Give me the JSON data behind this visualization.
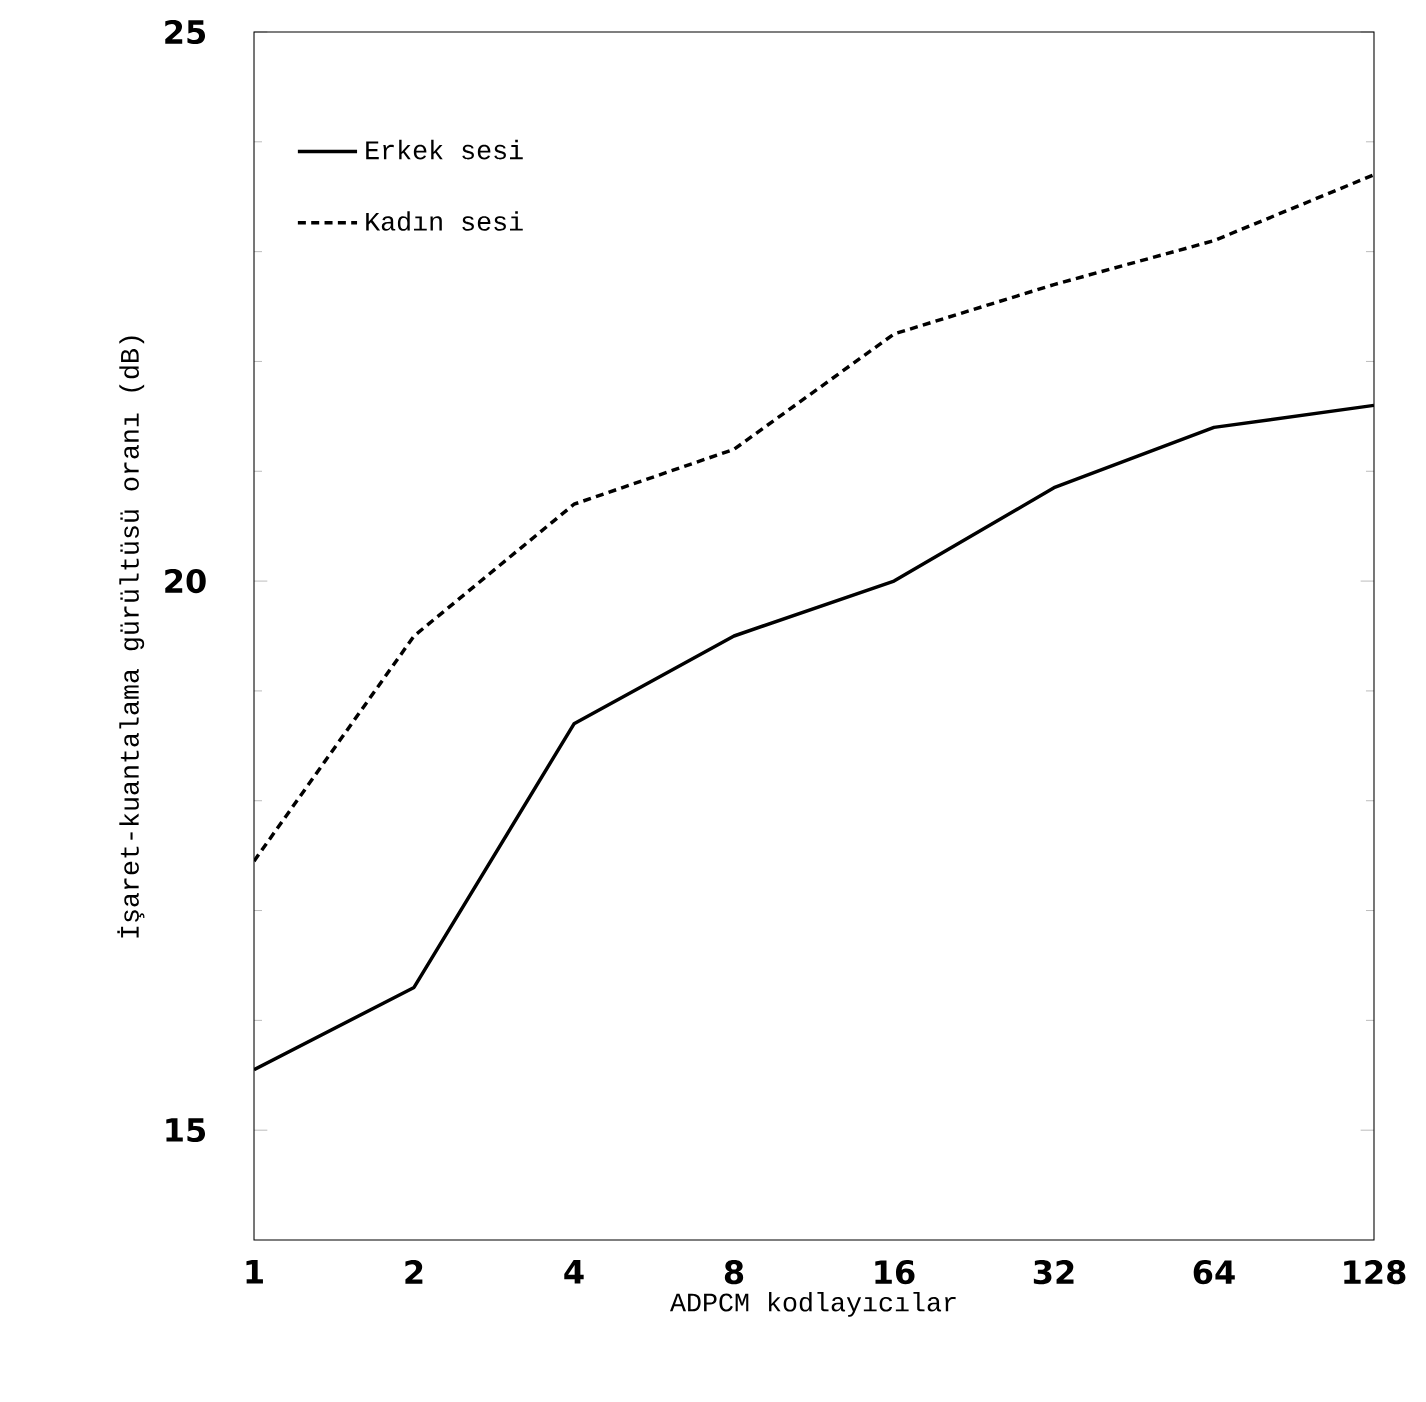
{
  "chart_data": {
    "type": "line",
    "xlabel": "ADPCM kodlayıcılar",
    "ylabel": "İşaret-kuantalama gürültüsü oranı      (dB)",
    "categories": [
      "1",
      "2",
      "4",
      "8",
      "16",
      "32",
      "64",
      "128"
    ],
    "ylim": [
      14,
      25
    ],
    "yticks": [
      15,
      20,
      25
    ],
    "legend": "top left",
    "grid": false,
    "marker": "none",
    "series": [
      {
        "name": "Erkek sesi",
        "color": "#000000",
        "line_style": "solid",
        "values": [
          15.55,
          16.3,
          18.7,
          19.5,
          20.0,
          20.85,
          21.4,
          21.6
        ]
      },
      {
        "name": "Kadın sesi",
        "color": "#000000",
        "line_style": "dashed",
        "values": [
          17.45,
          19.5,
          20.7,
          21.2,
          22.25,
          22.7,
          23.1,
          23.7
        ]
      }
    ]
  }
}
